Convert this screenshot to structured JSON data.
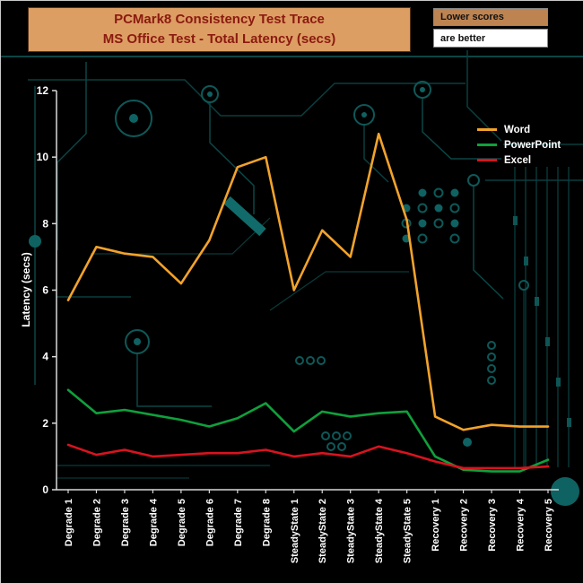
{
  "header": {
    "title_line1": "PCMark8 Consistency Test Trace",
    "title_line2": "MS Office Test -  Total Latency (secs)",
    "badge_top": "Lower scores",
    "badge_bottom": "are better",
    "title_bg": "#DD9E63",
    "title_text_color": "#8B1A10",
    "badge_top_bg": "#BD8452",
    "badge_bottom_bg": "#FFFFFF"
  },
  "chart_data": {
    "type": "line",
    "title": "PCMark8 Consistency Test Trace",
    "subtitle": "MS Office Test -  Total Latency (secs)",
    "xlabel": "",
    "ylabel": "Latency (secs)",
    "ylim": [
      0,
      12
    ],
    "yticks": [
      0,
      2,
      4,
      6,
      8,
      10,
      12
    ],
    "grid": false,
    "legend_position": "upper-right",
    "background": "#000000",
    "axis_color": "#D9D9D9",
    "text_color": "#FFFFFF",
    "categories": [
      "Degrade 1",
      "Degrade 2",
      "Degrade 3",
      "Degrade 4",
      "Degrade 5",
      "Degrade 6",
      "Degrade 7",
      "Degrade 8",
      "SteadyState 1",
      "SteadyState 2",
      "SteadyState 3",
      "SteadyState 4",
      "SteadyState 5",
      "Recovery 1",
      "Recovery 2",
      "Recovery 3",
      "Recovery 4",
      "Recovery 5"
    ],
    "series": [
      {
        "name": "Word",
        "color": "#F2A32B",
        "values": [
          5.7,
          7.3,
          7.1,
          7.0,
          6.2,
          7.5,
          9.7,
          10.0,
          6.0,
          7.8,
          7.0,
          10.7,
          8.1,
          2.2,
          1.8,
          1.95,
          1.9,
          1.9
        ]
      },
      {
        "name": "PowerPoint",
        "color": "#0FA03C",
        "values": [
          3.0,
          2.3,
          2.4,
          2.25,
          2.1,
          1.9,
          2.15,
          2.6,
          1.75,
          2.35,
          2.2,
          2.3,
          2.35,
          1.0,
          0.6,
          0.55,
          0.55,
          0.9
        ]
      },
      {
        "name": "Excel",
        "color": "#D8131F",
        "values": [
          1.35,
          1.05,
          1.2,
          1.0,
          1.05,
          1.1,
          1.1,
          1.2,
          1.0,
          1.1,
          1.0,
          1.3,
          1.1,
          0.85,
          0.65,
          0.65,
          0.65,
          0.7
        ]
      }
    ]
  }
}
